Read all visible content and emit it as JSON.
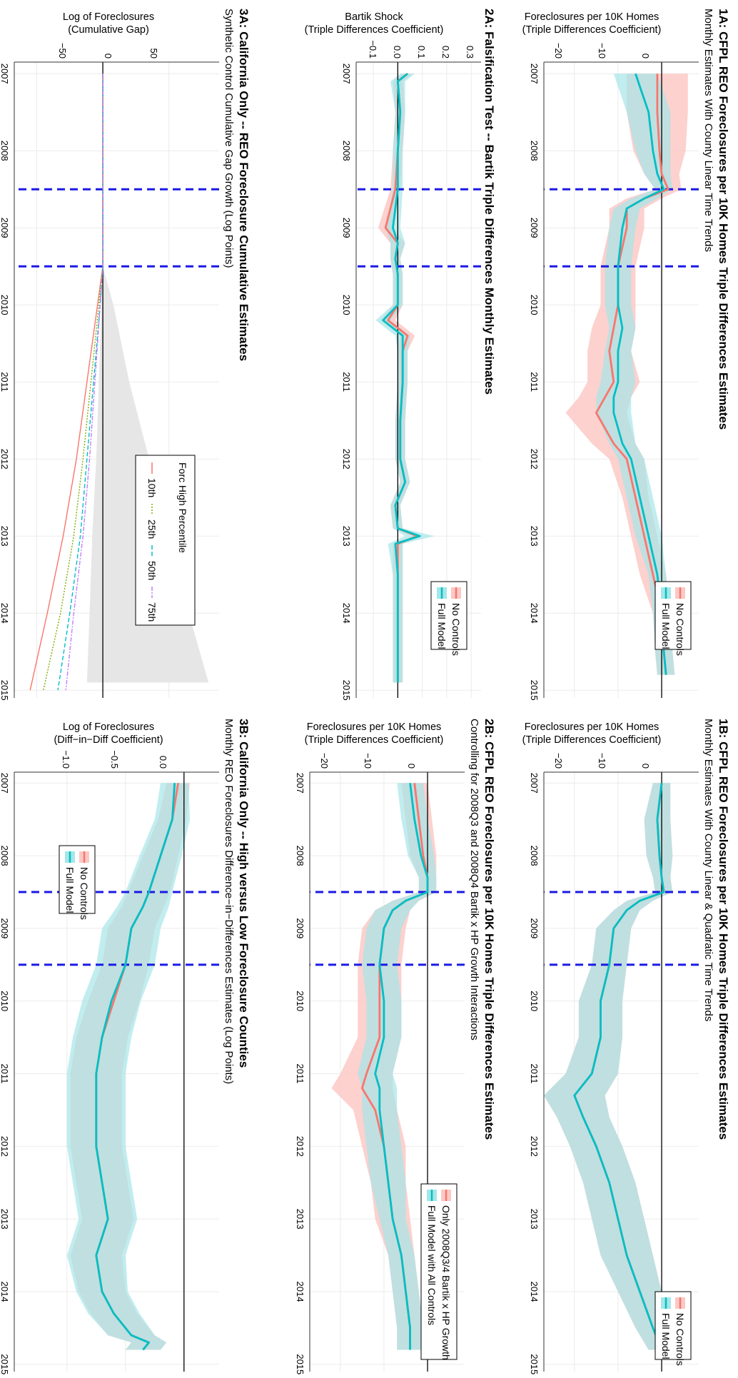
{
  "colors": {
    "no_controls": "#F8766D",
    "full_model": "#00BFC4",
    "band_no_controls": "#FBC9C5",
    "band_full_model": "#A6E6E8",
    "event_line": "#1A1AE6",
    "grid": "#EBEBEB",
    "cum_band": "#E6E6E6",
    "p25": "#7CAE00",
    "p50": "#00BFC4",
    "p75": "#C77CFF"
  },
  "years": [
    "2007",
    "2008",
    "2009",
    "2010",
    "2011",
    "2012",
    "2013",
    "2014",
    "2015"
  ],
  "event_lines": [
    2008.5,
    2009.5
  ],
  "panels": {
    "p1a": {
      "title": "1A: CFPL REO Foreclosures per 10K Homes Triple Differences Estimates",
      "subtitle": "Monthly Estimates With County Linear Time Trends",
      "ylabel_line1": "Foreclosures per 10K Homes",
      "ylabel_line2": "(Triple Differences Coefficient)",
      "yticks": [
        "0",
        "−10",
        "−20"
      ],
      "legend": [
        "No Controls",
        "Full Model"
      ]
    },
    "p1b": {
      "title": "1B: CFPL REO Foreclosures per 10K Homes Triple Differences Estimates",
      "subtitle": "Monthly Estimates With County Linear & Quadratic Time Trends",
      "ylabel_line1": "Foreclosures per 10K Homes",
      "ylabel_line2": "(Triple Differences Coefficient)",
      "yticks": [
        "0",
        "−10",
        "−20"
      ],
      "legend": [
        "No Controls",
        "Full Model"
      ]
    },
    "p2a": {
      "title": "2A: Falsification Test -- Bartik Triple Differences Monthly Estimates",
      "subtitle": "",
      "ylabel_line1": "Bartik Shock",
      "ylabel_line2": "(Triple Differences Coefficient)",
      "yticks": [
        "0.3",
        "0.2",
        "0.1",
        "0.0",
        "−0.1"
      ],
      "legend": [
        "No Controls",
        "Full Model"
      ]
    },
    "p2b": {
      "title": "2B: CFPL REO Foreclosures per 10K Homes Triple Differences Estimates",
      "subtitle": "Controlling for 2008Q3 and 2008Q4 Bartik x HP Growth Interactions",
      "ylabel_line1": "Foreclosures per 10K Homes",
      "ylabel_line2": "(Triple Differences Coefficient)",
      "yticks": [
        "0",
        "−10",
        "−20"
      ],
      "legend": [
        "Only 2008Q3/4 Bartik x HP Growth",
        "Full Model with All Controls"
      ]
    },
    "p3a": {
      "title": "3A: California Only -- REO Foreclosure Cumulative Estimates",
      "subtitle": "Synthetic Control Cumulative Gap Growth (Log Points)",
      "ylabel_line1": "Log of Foreclosures",
      "ylabel_line2": "(Cumulative Gap)",
      "yticks": [
        "50",
        "0",
        "−50"
      ],
      "legend_title": "Forc High Percentile",
      "legend": [
        "10th",
        "25th",
        "50th",
        "75th"
      ]
    },
    "p3b": {
      "title": "3B: California Only -- High versus Low Foreclosure Counties",
      "subtitle": "Monthly REO Foreclosures Difference−in−Differences Estimates (Log Points)",
      "ylabel_line1": "Log of Foreclosures",
      "ylabel_line2": "(Diff−in−Diff Coefficient)",
      "yticks": [
        "0.0",
        "−0.5",
        "−1.0"
      ],
      "legend": [
        "No Controls",
        "Full Model"
      ]
    }
  },
  "chart_data": [
    {
      "id": "p1a",
      "type": "line",
      "ylim": [
        -27,
        8.5
      ],
      "series": [
        {
          "name": "No Controls",
          "x": [
            2007.0,
            2007.5,
            2008.0,
            2008.3,
            2008.5,
            2008.62,
            2008.75,
            2009.0,
            2009.5,
            2010.0,
            2010.3,
            2010.6,
            2011.0,
            2011.2,
            2011.4,
            2011.8,
            2012.0,
            2012.5,
            2013.0,
            2013.5,
            2014.0,
            2014.5,
            2014.8
          ],
          "y": [
            -1,
            -1,
            -0.5,
            0,
            1.5,
            -4,
            -8,
            -8,
            -10,
            -10,
            -11,
            -12,
            -11,
            -13,
            -15,
            -11,
            -8,
            -6,
            -4,
            -2,
            0,
            0.5,
            1
          ],
          "band": [
            7,
            7,
            6,
            4,
            3,
            4,
            4,
            4,
            4,
            4,
            5,
            5,
            6,
            6,
            7,
            5,
            4,
            3,
            3,
            3,
            2,
            2,
            2
          ]
        },
        {
          "name": "Full Model",
          "x": [
            2007.0,
            2007.5,
            2008.0,
            2008.3,
            2008.5,
            2008.62,
            2008.75,
            2009.0,
            2009.5,
            2010.0,
            2010.3,
            2010.6,
            2011.0,
            2011.2,
            2011.4,
            2011.8,
            2012.0,
            2012.5,
            2013.0,
            2013.5,
            2014.0,
            2014.5,
            2014.8
          ],
          "y": [
            -6,
            -3,
            -2,
            -1,
            0.5,
            -4,
            -8,
            -9,
            -10,
            -10,
            -9,
            -10,
            -10,
            -11,
            -11,
            -9,
            -7,
            -5,
            -3,
            -1,
            0,
            0.5,
            1
          ],
          "band": [
            5,
            5,
            4,
            3,
            2,
            3,
            3,
            3,
            3,
            3,
            3,
            3,
            4,
            4,
            4,
            3,
            3,
            3,
            3,
            2,
            2,
            2,
            2
          ]
        }
      ]
    },
    {
      "id": "p1b",
      "type": "line",
      "ylim": [
        -27,
        8.5
      ],
      "series": [
        {
          "name": "No Controls",
          "x": [
            2007.0,
            2007.5,
            2008.0,
            2008.3,
            2008.5,
            2008.62,
            2008.75,
            2009.0,
            2009.5,
            2010.0,
            2010.5,
            2011.0,
            2011.3,
            2011.6,
            2012.0,
            2012.5,
            2013.0,
            2013.5,
            2014.0,
            2014.5,
            2014.8
          ],
          "y": [
            0,
            -1,
            -0.5,
            0,
            0.5,
            -5,
            -8,
            -11,
            -12,
            -14,
            -14,
            -16,
            -20,
            -18,
            -15,
            -12,
            -10,
            -8,
            -5,
            -2,
            0
          ],
          "band": [
            2,
            3,
            3,
            2,
            2,
            3,
            3,
            4,
            4,
            5,
            5,
            6,
            7,
            6,
            6,
            6,
            6,
            6,
            5,
            4,
            3
          ]
        },
        {
          "name": "Full Model",
          "x": [
            2007.0,
            2007.5,
            2008.0,
            2008.3,
            2008.5,
            2008.62,
            2008.75,
            2009.0,
            2009.5,
            2010.0,
            2010.5,
            2011.0,
            2011.3,
            2011.6,
            2012.0,
            2012.5,
            2013.0,
            2013.5,
            2014.0,
            2014.5,
            2014.8
          ],
          "y": [
            0,
            -1,
            -0.5,
            0,
            0.5,
            -5,
            -8,
            -11,
            -12,
            -14,
            -14,
            -16,
            -20,
            -18,
            -15,
            -12,
            -10,
            -8,
            -5,
            -2,
            0
          ],
          "band": [
            2,
            3,
            3,
            2,
            2,
            3,
            3,
            4,
            4,
            5,
            5,
            6,
            7,
            6,
            6,
            6,
            6,
            6,
            5,
            4,
            3
          ]
        }
      ]
    },
    {
      "id": "p2a",
      "type": "line",
      "ylim": [
        -0.17,
        0.34
      ],
      "series": [
        {
          "name": "No Controls",
          "x": [
            2007.0,
            2007.1,
            2007.5,
            2008.0,
            2008.5,
            2009.0,
            2009.2,
            2009.4,
            2009.6,
            2010.0,
            2010.2,
            2010.4,
            2010.6,
            2011.0,
            2011.5,
            2012.0,
            2012.3,
            2012.6,
            2012.9,
            2013.0,
            2013.1,
            2013.5,
            2014.0,
            2014.5,
            2014.9
          ],
          "y": [
            0.04,
            0,
            0.01,
            0,
            -0.01,
            -0.05,
            0,
            -0.01,
            0,
            0,
            -0.04,
            0.04,
            0.02,
            0.02,
            0.01,
            0.01,
            0.03,
            -0.01,
            0,
            0.08,
            0,
            0,
            0,
            0,
            0
          ],
          "band": [
            0.02,
            0.02,
            0.02,
            0.02,
            0.02,
            0.03,
            0.03,
            0.02,
            0.02,
            0.02,
            0.03,
            0.03,
            0.02,
            0.02,
            0.02,
            0.02,
            0.02,
            0.02,
            0.02,
            0.02,
            0.02,
            0.02,
            0.02,
            0.02,
            0.02
          ]
        },
        {
          "name": "Full Model",
          "x": [
            2007.0,
            2007.1,
            2007.5,
            2008.0,
            2008.5,
            2009.0,
            2009.2,
            2009.4,
            2009.6,
            2010.0,
            2010.2,
            2010.4,
            2010.6,
            2011.0,
            2011.5,
            2012.0,
            2012.3,
            2012.6,
            2012.9,
            2013.0,
            2013.1,
            2013.5,
            2014.0,
            2014.5,
            2014.9
          ],
          "y": [
            0.04,
            0,
            0.01,
            0,
            0,
            -0.02,
            0,
            -0.01,
            0,
            0,
            -0.06,
            0.02,
            0.02,
            0.02,
            0.01,
            0.01,
            0.03,
            -0.01,
            0,
            0.09,
            -0.01,
            0,
            0,
            0,
            0
          ],
          "band": [
            0.03,
            0.03,
            0.02,
            0.02,
            0.02,
            0.03,
            0.03,
            0.02,
            0.02,
            0.02,
            0.03,
            0.03,
            0.02,
            0.02,
            0.02,
            0.02,
            0.02,
            0.02,
            0.02,
            0.06,
            0.03,
            0.02,
            0.02,
            0.02,
            0.02
          ]
        }
      ]
    },
    {
      "id": "p2b",
      "type": "line",
      "ylim": [
        -27,
        8.5
      ],
      "series": [
        {
          "name": "Only 2008Q3/4 Bartik x HP Growth",
          "x": [
            2007.0,
            2007.5,
            2008.0,
            2008.3,
            2008.5,
            2008.62,
            2008.75,
            2009.0,
            2009.5,
            2010.0,
            2010.5,
            2011.0,
            2011.2,
            2011.5,
            2012.0,
            2012.5,
            2013.0,
            2013.5,
            2014.0,
            2014.5,
            2014.8
          ],
          "y": [
            -3,
            -2,
            -1,
            0,
            0,
            -5,
            -8,
            -10,
            -11,
            -11,
            -11,
            -14,
            -15,
            -12,
            -10,
            -9,
            -8,
            -6,
            -5,
            -4,
            -4
          ],
          "band": [
            3,
            3,
            3,
            2,
            2,
            3,
            4,
            5,
            5,
            5,
            5,
            6,
            7,
            5,
            5,
            4,
            4,
            3,
            3,
            3,
            3
          ]
        },
        {
          "name": "Full Model with All Controls",
          "x": [
            2007.0,
            2007.5,
            2008.0,
            2008.3,
            2008.5,
            2008.62,
            2008.75,
            2009.0,
            2009.5,
            2010.0,
            2010.5,
            2011.0,
            2011.2,
            2011.5,
            2012.0,
            2012.5,
            2013.0,
            2013.5,
            2014.0,
            2014.5,
            2014.8
          ],
          "y": [
            -4,
            -3,
            -1.5,
            0,
            0,
            -5,
            -8,
            -10,
            -11,
            -10,
            -10,
            -12,
            -11,
            -11,
            -10,
            -9,
            -8,
            -6,
            -5,
            -4,
            -4
          ],
          "band": [
            3,
            3,
            3,
            2,
            2,
            3,
            4,
            4,
            4,
            4,
            4,
            4,
            4,
            4,
            4,
            4,
            3,
            3,
            3,
            3,
            3
          ]
        }
      ]
    },
    {
      "id": "p3a",
      "type": "line",
      "ylim": [
        -67,
        88
      ],
      "band": {
        "x": [
          2009.5,
          2010,
          2011,
          2012,
          2013,
          2014,
          2014.9
        ],
        "lower": [
          0,
          -1,
          -3,
          -5,
          -8,
          -10,
          -12
        ],
        "upper": [
          0,
          8,
          20,
          35,
          50,
          65,
          80
        ]
      },
      "series": [
        {
          "name": "10th",
          "x": [
            2007,
            2008,
            2009.5,
            2010,
            2011,
            2012,
            2013,
            2014,
            2015
          ],
          "y": [
            0,
            0,
            0,
            -4,
            -12,
            -20,
            -30,
            -42,
            -55
          ]
        },
        {
          "name": "25th",
          "x": [
            2007,
            2008,
            2009.5,
            2010,
            2011,
            2012,
            2013,
            2014,
            2015
          ],
          "y": [
            0,
            0,
            0,
            -3,
            -9,
            -15,
            -22,
            -32,
            -45
          ]
        },
        {
          "name": "50th",
          "x": [
            2007,
            2008,
            2009.5,
            2010,
            2011,
            2012,
            2013,
            2014,
            2015
          ],
          "y": [
            0,
            0,
            0,
            -2,
            -7,
            -12,
            -17,
            -25,
            -34
          ]
        },
        {
          "name": "75th",
          "x": [
            2007,
            2008,
            2009.5,
            2010,
            2011,
            2012,
            2013,
            2014,
            2015
          ],
          "y": [
            0,
            0,
            0,
            -2,
            -6,
            -10,
            -15,
            -22,
            -28
          ]
        }
      ]
    },
    {
      "id": "p3b",
      "type": "line",
      "ylim": [
        -1.45,
        0.3
      ],
      "series": [
        {
          "name": "No Controls",
          "x": [
            2007.0,
            2007.5,
            2008.0,
            2008.5,
            2008.7,
            2009.0,
            2009.5,
            2010.0,
            2010.5,
            2011.0,
            2011.5,
            2012.0,
            2012.5,
            2013.0,
            2013.5,
            2014.0,
            2014.3,
            2014.6,
            2014.7,
            2014.8
          ],
          "y": [
            -0.05,
            -0.1,
            -0.2,
            -0.3,
            -0.35,
            -0.45,
            -0.5,
            -0.6,
            -0.7,
            -0.75,
            -0.75,
            -0.75,
            -0.7,
            -0.65,
            -0.75,
            -0.7,
            -0.6,
            -0.45,
            -0.3,
            -0.35
          ],
          "band": [
            0.1,
            0.12,
            0.15,
            0.18,
            0.18,
            0.2,
            0.2,
            0.22,
            0.22,
            0.22,
            0.22,
            0.22,
            0.22,
            0.22,
            0.22,
            0.2,
            0.2,
            0.2,
            0.15,
            0.15
          ]
        },
        {
          "name": "Full Model",
          "x": [
            2007.0,
            2007.5,
            2008.0,
            2008.5,
            2008.7,
            2009.0,
            2009.5,
            2010.0,
            2010.5,
            2011.0,
            2011.5,
            2012.0,
            2012.5,
            2013.0,
            2013.5,
            2014.0,
            2014.3,
            2014.6,
            2014.7,
            2014.8
          ],
          "y": [
            -0.08,
            -0.1,
            -0.2,
            -0.3,
            -0.35,
            -0.45,
            -0.5,
            -0.62,
            -0.7,
            -0.75,
            -0.75,
            -0.75,
            -0.7,
            -0.65,
            -0.75,
            -0.7,
            -0.6,
            -0.45,
            -0.3,
            -0.35
          ],
          "band": [
            0.12,
            0.15,
            0.18,
            0.2,
            0.22,
            0.25,
            0.25,
            0.25,
            0.25,
            0.25,
            0.25,
            0.25,
            0.25,
            0.25,
            0.25,
            0.22,
            0.22,
            0.2,
            0.15,
            0.15
          ]
        }
      ]
    }
  ]
}
